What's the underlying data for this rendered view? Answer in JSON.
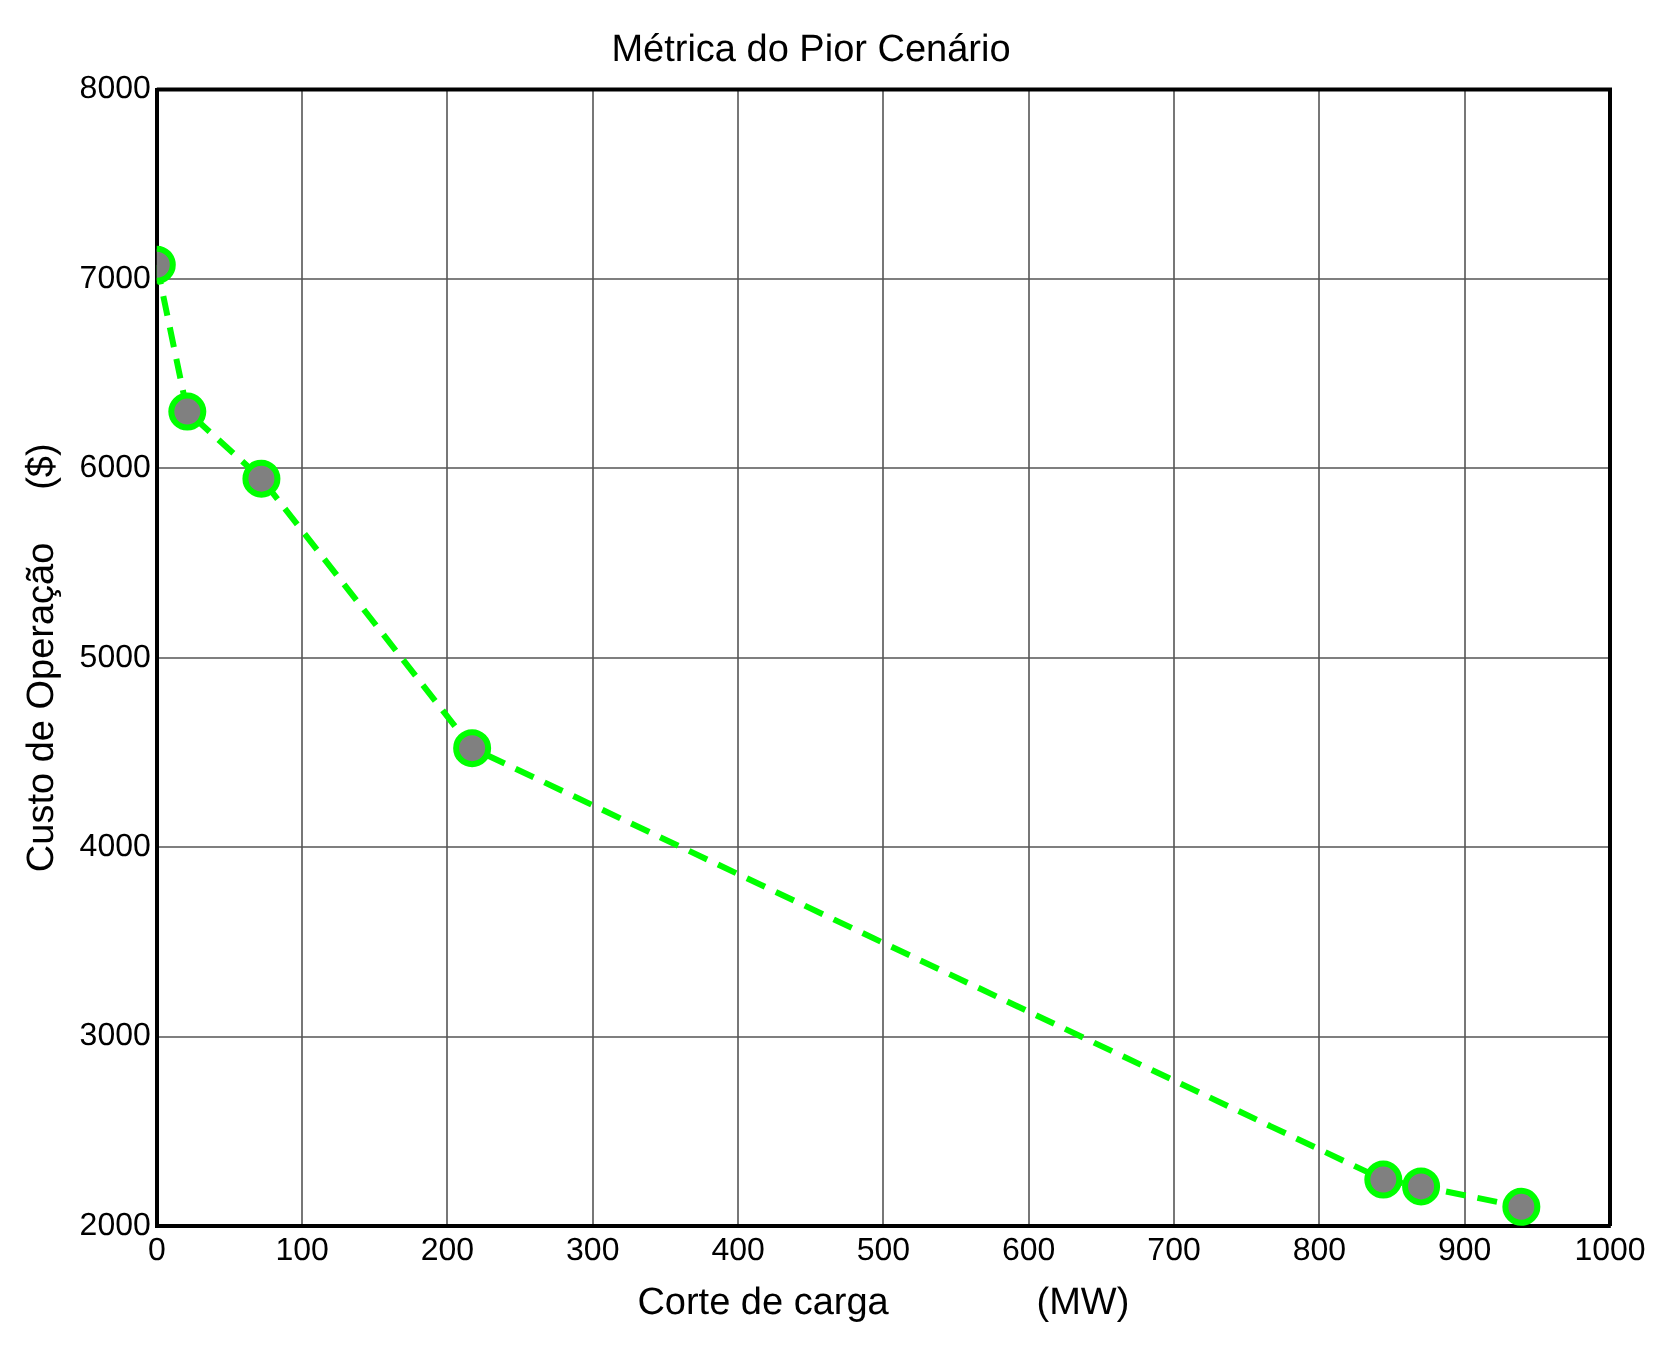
{
  "chart_data": {
    "type": "line",
    "title": "Métrica do Pior Cenário",
    "xlabel": "Corte de carga              (MW)",
    "ylabel": "Custo de Operação     ($)",
    "x": [
      0,
      21,
      72,
      217,
      844,
      870,
      939
    ],
    "series": [
      {
        "color": "#00ff00",
        "values": [
          7075,
          6300,
          5946,
          4523,
          2245,
          2209,
          2101
        ]
      }
    ],
    "xlim": [
      0,
      1000
    ],
    "xticks": [
      0,
      100,
      200,
      300,
      400,
      500,
      600,
      700,
      800,
      900,
      1000
    ],
    "ylim": [
      2000,
      8000
    ],
    "yticks": [
      2000,
      3000,
      4000,
      5000,
      6000,
      7000,
      8000
    ],
    "grid": true,
    "legend": false,
    "marker": "circle",
    "line_style": "dashed"
  }
}
